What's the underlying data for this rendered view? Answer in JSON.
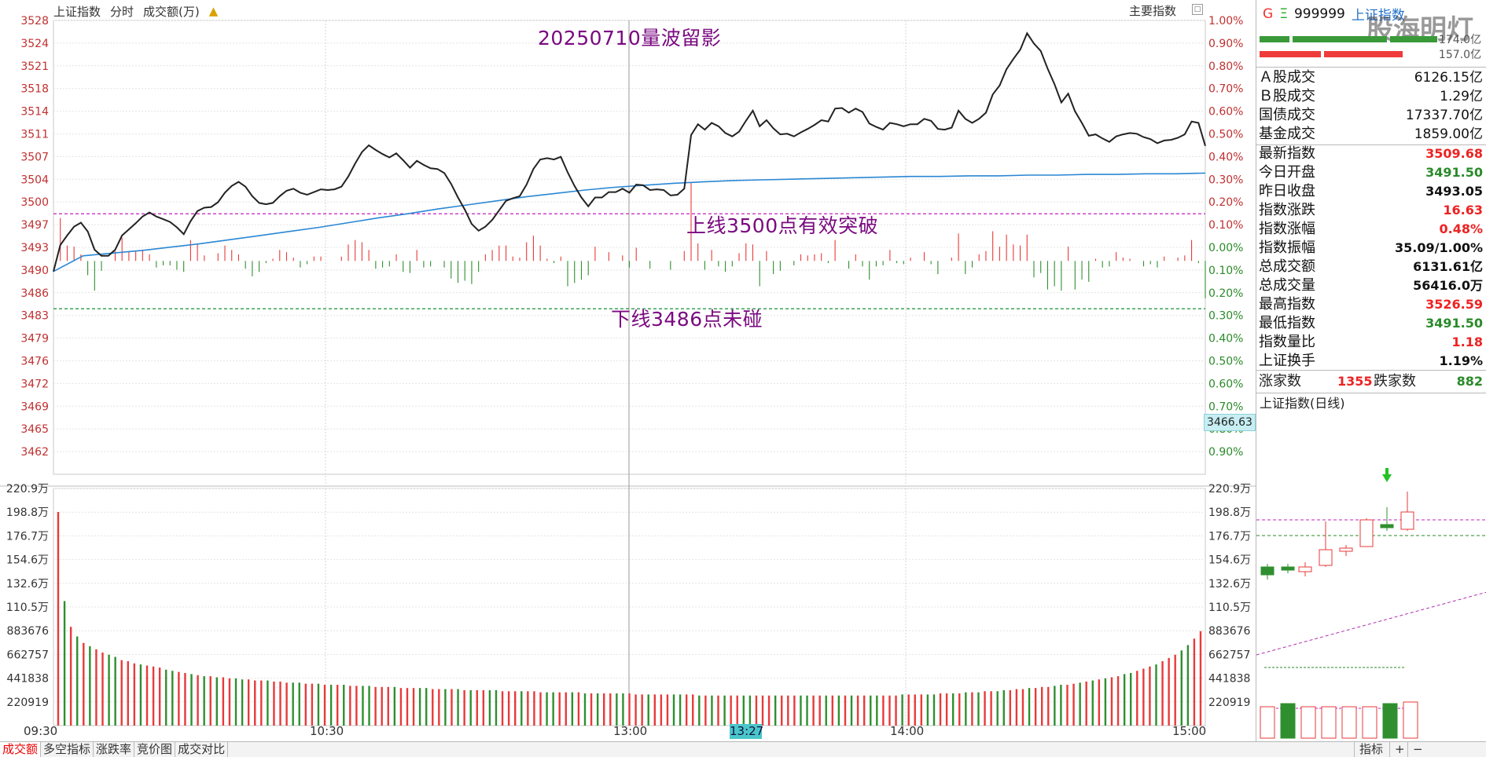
{
  "window": {
    "index_name": "上证指数",
    "view_mode": "分时",
    "volume_unit_label": "成交额(万)",
    "alarm_icon": "bell-icon",
    "main_index_label": "主要指数"
  },
  "annotations": {
    "title": "20250710量波留影",
    "upper_note": "上线3500点有效突破",
    "lower_note": "下线3486点未碰"
  },
  "hover": {
    "price": "3466.63",
    "time": "13:27"
  },
  "bottom_tabs": [
    "成交额",
    "多空指标",
    "涨跌率",
    "竞价图",
    "成交对比"
  ],
  "bottom_right": {
    "indicator": "指标",
    "plus": "+",
    "minus": "−"
  },
  "right_panel": {
    "header": {
      "g": "G",
      "eq": "Ξ",
      "code": "999999",
      "name": "上证指数"
    },
    "watermark": "股海明灯",
    "bar_values": [
      "174.0亿",
      "157.0亿"
    ],
    "turnover": [
      {
        "label": "Ａ股成交",
        "value": "6126.15亿"
      },
      {
        "label": "Ｂ股成交",
        "value": "1.29亿"
      },
      {
        "label": "国债成交",
        "value": "17337.70亿"
      },
      {
        "label": "基金成交",
        "value": "1859.00亿"
      }
    ],
    "quote": [
      {
        "label": "最新指数",
        "value": "3509.68",
        "color": "red"
      },
      {
        "label": "今日开盘",
        "value": "3491.50",
        "color": "green"
      },
      {
        "label": "昨日收盘",
        "value": "3493.05",
        "color": ""
      },
      {
        "label": "指数涨跌",
        "value": "16.63",
        "color": "red"
      },
      {
        "label": "指数涨幅",
        "value": "0.48%",
        "color": "red"
      },
      {
        "label": "指数振幅",
        "value": "35.09/1.00%",
        "color": ""
      },
      {
        "label": "总成交额",
        "value": "6131.61亿",
        "color": ""
      },
      {
        "label": "总成交量",
        "value": "56416.0万",
        "color": ""
      },
      {
        "label": "最高指数",
        "value": "3526.59",
        "color": "red"
      },
      {
        "label": "最低指数",
        "value": "3491.50",
        "color": "green"
      },
      {
        "label": "指数量比",
        "value": "1.18",
        "color": "red"
      },
      {
        "label": "上证换手",
        "value": "1.19%",
        "color": ""
      }
    ],
    "breadth": {
      "up_label": "涨家数",
      "up_value": "1355",
      "down_label": "跌家数",
      "down_value": "882"
    },
    "daily_title": "上证指数(日线)"
  },
  "chart_data": {
    "type": "line",
    "x_labels": [
      "09:30",
      "10:30",
      "13:00",
      "14:00",
      "15:00"
    ],
    "price_ticks": [
      "3528",
      "3524",
      "3521",
      "3518",
      "3514",
      "3511",
      "3507",
      "3504",
      "3500",
      "3497",
      "3493",
      "3490",
      "3486",
      "3483",
      "3479",
      "3476",
      "3472",
      "3469",
      "3465",
      "3462"
    ],
    "pct_ticks": [
      "1.00%",
      "0.90%",
      "0.80%",
      "0.70%",
      "0.60%",
      "0.50%",
      "0.40%",
      "0.30%",
      "0.20%",
      "0.10%",
      "0.00%",
      "0.10%",
      "0.20%",
      "0.30%",
      "0.40%",
      "0.50%",
      "0.60%",
      "0.70%",
      "0.80%",
      "0.90%"
    ],
    "volume_ticks": [
      "220.9万",
      "198.8万",
      "176.7万",
      "154.6万",
      "132.6万",
      "110.5万",
      "883676",
      "662757",
      "441838",
      "220919"
    ],
    "prev_close": 3493.05,
    "y_range": [
      3461.6,
      3528.5
    ],
    "reference_lines": [
      3500,
      3486
    ],
    "price_series": [
      3491.5,
      3495.4,
      3496.8,
      3498.1,
      3498.7,
      3497.4,
      3494.7,
      3493.8,
      3493.8,
      3494.7,
      3496.8,
      3497.7,
      3498.6,
      3499.6,
      3500.2,
      3499.6,
      3499.2,
      3498.8,
      3498.0,
      3497.0,
      3498.9,
      3500.4,
      3500.9,
      3501.0,
      3501.7,
      3503.1,
      3504.1,
      3504.7,
      3504.0,
      3502.6,
      3501.6,
      3501.4,
      3501.6,
      3502.6,
      3503.4,
      3503.7,
      3503.1,
      3502.8,
      3503.2,
      3503.6,
      3503.5,
      3503.6,
      3504.0,
      3505.5,
      3507.4,
      3509.1,
      3510.1,
      3509.4,
      3508.8,
      3508.3,
      3508.9,
      3507.9,
      3506.8,
      3507.8,
      3507.2,
      3506.7,
      3506.6,
      3506.0,
      3504.4,
      3502.4,
      3500.6,
      3498.5,
      3497.5,
      3498.1,
      3499.1,
      3500.5,
      3501.9,
      3502.3,
      3502.6,
      3504.3,
      3506.6,
      3508.0,
      3508.2,
      3508.0,
      3508.4,
      3506.1,
      3504.1,
      3502.4,
      3501.1,
      3502.4,
      3502.4,
      3503.2,
      3503.2,
      3503.7,
      3503.1,
      3504.3,
      3504.2,
      3503.5,
      3503.6,
      3503.5,
      3502.7,
      3502.8,
      3503.7,
      3511.6,
      3513.2,
      3512.4,
      3513.4,
      3512.9,
      3511.9,
      3511.4,
      3512.1,
      3513.7,
      3515.2,
      3512.9,
      3513.8,
      3512.6,
      3511.7,
      3511.8,
      3511.4,
      3512.0,
      3512.5,
      3513.1,
      3513.8,
      3513.6,
      3515.5,
      3515.6,
      3514.9,
      3515.5,
      3515.0,
      3513.3,
      3512.8,
      3512.4,
      3513.4,
      3513.2,
      3512.9,
      3513.2,
      3513.2,
      3514.0,
      3513.7,
      3512.5,
      3512.4,
      3512.7,
      3515.2,
      3514.0,
      3513.4,
      3514.0,
      3514.9,
      3517.6,
      3518.9,
      3521.3,
      3522.8,
      3524.2,
      3526.6,
      3525.1,
      3524.0,
      3521.4,
      3519.1,
      3516.4,
      3517.7,
      3515.1,
      3513.4,
      3511.5,
      3511.7,
      3511.1,
      3510.6,
      3511.4,
      3511.7,
      3511.9,
      3511.8,
      3511.3,
      3511.0,
      3510.4,
      3510.8,
      3510.9,
      3511.2,
      3511.7,
      3513.6,
      3513.4,
      3510.0
    ],
    "avg_series": [
      3491.5,
      3493.8,
      3494.2,
      3494.6,
      3495.1,
      3495.6,
      3496.2,
      3496.8,
      3497.4,
      3498.0,
      3498.7,
      3499.4,
      3500.0,
      3500.7,
      3501.3,
      3501.9,
      3502.5,
      3503.0,
      3503.5,
      3503.9,
      3504.2,
      3504.5,
      3504.7,
      3504.9,
      3505.0,
      3505.1,
      3505.2,
      3505.3,
      3505.4,
      3505.5,
      3505.5,
      3505.6,
      3505.6,
      3505.7,
      3505.7,
      3505.8,
      3505.8,
      3505.9,
      3505.9,
      3506.0
    ],
    "volume_series": [
      1.99,
      1.16,
      0.92,
      0.83,
      0.77,
      0.74,
      0.71,
      0.68,
      0.66,
      0.64,
      0.61,
      0.6,
      0.58,
      0.57,
      0.56,
      0.55,
      0.54,
      0.52,
      0.51,
      0.5,
      0.49,
      0.48,
      0.47,
      0.46,
      0.46,
      0.45,
      0.45,
      0.44,
      0.44,
      0.43,
      0.43,
      0.42,
      0.42,
      0.42,
      0.41,
      0.41,
      0.4,
      0.4,
      0.4,
      0.39,
      0.39,
      0.39,
      0.38,
      0.38,
      0.38,
      0.38,
      0.37,
      0.37,
      0.37,
      0.37,
      0.36,
      0.36,
      0.36,
      0.36,
      0.35,
      0.35,
      0.35,
      0.35,
      0.35,
      0.34,
      0.34,
      0.34,
      0.34,
      0.34,
      0.33,
      0.33,
      0.33,
      0.33,
      0.33,
      0.33,
      0.32,
      0.32,
      0.32,
      0.32,
      0.32,
      0.32,
      0.31,
      0.31,
      0.31,
      0.31,
      0.31,
      0.31,
      0.31,
      0.3,
      0.3,
      0.3,
      0.3,
      0.3,
      0.3,
      0.3,
      0.3,
      0.29,
      0.29,
      0.29,
      0.29,
      0.29,
      0.29,
      0.29,
      0.29,
      0.29,
      0.29,
      0.28,
      0.28,
      0.28,
      0.28,
      0.28,
      0.28,
      0.28,
      0.28,
      0.28,
      0.28,
      0.28,
      0.28,
      0.28,
      0.28,
      0.28,
      0.28,
      0.28,
      0.28,
      0.28,
      0.28,
      0.28,
      0.28,
      0.28,
      0.28,
      0.28,
      0.28,
      0.28,
      0.28,
      0.28,
      0.28,
      0.28,
      0.28,
      0.29,
      0.29,
      0.29,
      0.29,
      0.29,
      0.29,
      0.3,
      0.3,
      0.3,
      0.3,
      0.31,
      0.31,
      0.31,
      0.32,
      0.32,
      0.32,
      0.33,
      0.33,
      0.34,
      0.34,
      0.35,
      0.35,
      0.36,
      0.36,
      0.37,
      0.38,
      0.38,
      0.39,
      0.4,
      0.41,
      0.42,
      0.43,
      0.44,
      0.45,
      0.46,
      0.48,
      0.49,
      0.51,
      0.53,
      0.55,
      0.57,
      0.6,
      0.63,
      0.66,
      0.7,
      0.75,
      0.81,
      0.88
    ]
  },
  "colors": {
    "up": "#e83a3a",
    "down": "#2f8f2f",
    "price_line": "#222222",
    "avg_line": "#2a87d4",
    "ref_line": "#c020c0",
    "ref_line_low": "#2a9a4a",
    "annotation": "#7a0a80"
  }
}
